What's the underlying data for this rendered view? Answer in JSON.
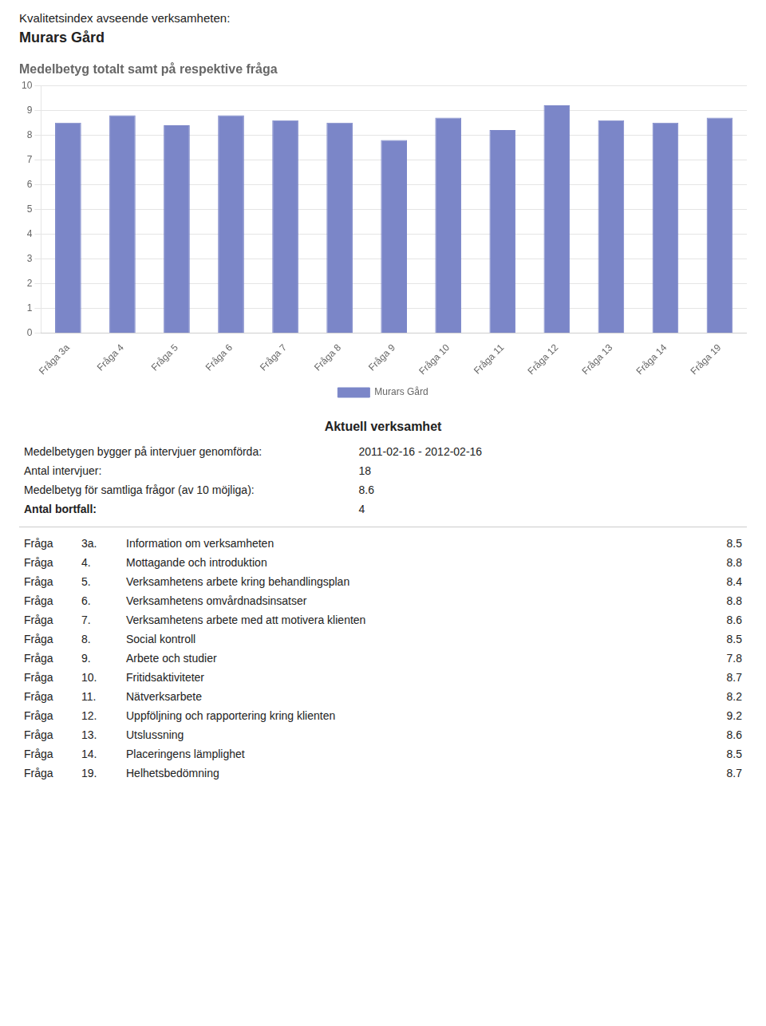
{
  "chart_data": {
    "type": "bar",
    "title": "Medelbetyg totalt samt på respektive fråga",
    "subtitle": [
      "Kvalitetsindex avseende verksamheten:",
      "Murars Gård"
    ],
    "categories": [
      "Fråga 3a",
      "Fråga 4",
      "Fråga 5",
      "Fråga 6",
      "Fråga 7",
      "Fråga 8",
      "Fråga 9",
      "Fråga 10",
      "Fråga 11",
      "Fråga 12",
      "Fråga 13",
      "Fråga 14",
      "Fråga 19"
    ],
    "series": [
      {
        "name": "Murars Gård",
        "color": "#7b86c8",
        "values": [
          8.5,
          8.8,
          8.4,
          8.8,
          8.6,
          8.5,
          7.8,
          8.7,
          8.2,
          9.2,
          8.6,
          8.5,
          8.7
        ]
      }
    ],
    "ylim": [
      0,
      10
    ],
    "yticks": [
      0,
      1,
      2,
      3,
      4,
      5,
      6,
      7,
      8,
      9,
      10
    ],
    "grid": true,
    "legend": "bottom",
    "annotations": [
      [
        "Aktuell verksamhet"
      ],
      [
        "Medelbetygen bygger på intervjuer genomförda:",
        "2011-02-16 - 2012-02-16"
      ],
      [
        "Antal intervjuer:",
        "18"
      ],
      [
        "Medelbetyg för samtliga frågor (av 10 möjliga):",
        "8.6"
      ],
      [
        "Antal bortfall:",
        "4"
      ],
      [
        "Fråga",
        "3a.",
        "Information om verksamheten",
        "8.5"
      ],
      [
        "Fråga",
        "4.",
        "Mottagande och introduktion",
        "8.8"
      ],
      [
        "Fråga",
        "5.",
        "Verksamhetens arbete kring behandlingsplan",
        "8.4"
      ],
      [
        "Fråga",
        "6.",
        "Verksamhetens omvårdnadsinsatser",
        "8.8"
      ],
      [
        "Fråga",
        "7.",
        "Verksamhetens arbete med att motivera klienten",
        "8.6"
      ],
      [
        "Fråga",
        "8.",
        "Social kontroll",
        "8.5"
      ],
      [
        "Fråga",
        "9.",
        "Arbete och studier",
        "7.8"
      ],
      [
        "Fråga",
        "10.",
        "Fritidsaktiviteter",
        "8.7"
      ],
      [
        "Fråga",
        "11.",
        "Nätverksarbete",
        "8.2"
      ],
      [
        "Fråga",
        "12.",
        "Uppföljning och rapportering kring klienten",
        "9.2"
      ],
      [
        "Fråga",
        "13.",
        "Utslussning",
        "8.6"
      ],
      [
        "Fråga",
        "14.",
        "Placeringens lämplighet",
        "8.5"
      ],
      [
        "Fråga",
        "19.",
        "Helhetsbedömning",
        "8.7"
      ]
    ]
  }
}
